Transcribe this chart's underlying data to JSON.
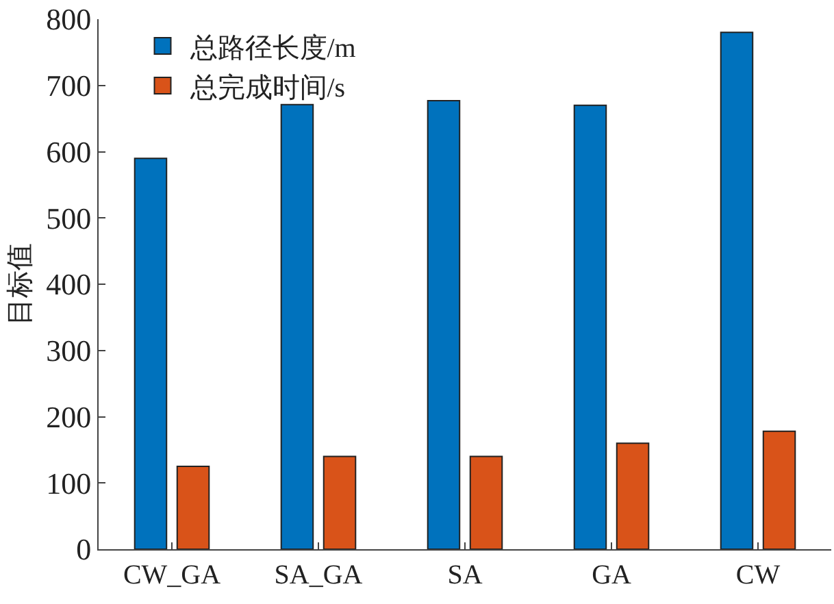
{
  "chart_data": {
    "type": "bar",
    "ylabel": "目标值",
    "categories": [
      "CW_GA",
      "SA_GA",
      "SA",
      "GA",
      "CW"
    ],
    "series": [
      {
        "name": "总路径长度/m",
        "color": "#0072bd",
        "values": [
          590,
          671,
          677,
          670,
          780
        ]
      },
      {
        "name": "总完成时间/s",
        "color": "#d95319",
        "values": [
          125,
          140,
          140,
          160,
          178
        ]
      }
    ],
    "ylim": [
      0,
      800
    ],
    "yticks": [
      0,
      100,
      200,
      300,
      400,
      500,
      600,
      700,
      800
    ],
    "grid": false,
    "legend": "top left"
  }
}
